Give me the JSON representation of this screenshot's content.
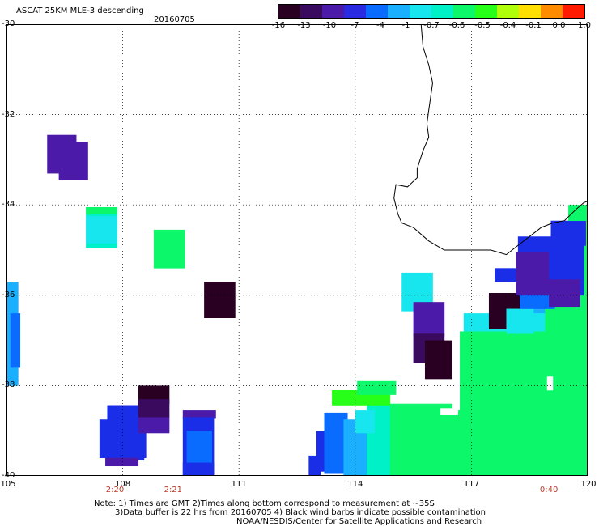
{
  "header": {
    "title": "ASCAT 25KM MLE-3 descending",
    "date": "20160705"
  },
  "colorbar": {
    "labels": [
      "-16",
      "-13",
      "-10",
      "-7",
      "-4",
      "-1",
      "-0.7",
      "-0.6",
      "-0.5",
      "-0.4",
      "-0.1",
      "0.0",
      "1.0"
    ],
    "colors": [
      "#2a0022",
      "#3a0a5e",
      "#4b1aa8",
      "#2a2ae0",
      "#0a6cff",
      "#1ab0ff",
      "#18e6ee",
      "#00f0c8",
      "#0cf86a",
      "#28ff18",
      "#b0ff0a",
      "#ffe000",
      "#ff8c00",
      "#ff1a00"
    ]
  },
  "axes": {
    "lat_labels": [
      "-30",
      "-32",
      "-34",
      "-36",
      "-38",
      "-40"
    ],
    "lon_labels": [
      "105",
      "108",
      "111",
      "114",
      "117",
      "120"
    ],
    "lat_range": [
      -40,
      -30
    ],
    "lon_range": [
      105,
      120
    ],
    "grid": "dotted"
  },
  "time_labels": [
    {
      "text": "2:20",
      "lon": 107.8
    },
    {
      "text": "2:21",
      "lon": 109.3
    },
    {
      "text": "0:40",
      "lon": 119.0
    }
  ],
  "notes": {
    "line1": "Note: 1) Times are GMT 2)Times along bottom correspond to measurement at ~35S",
    "line2": "3)Data buffer is 22 hrs from 20160705 4) Black wind barbs indicate possible contamination",
    "line3": "NOAA/NESDIS/Center for Satellite Applications and Research"
  },
  "palette": {
    "dark": "#2a0022",
    "darkpurple": "#3a0a5e",
    "purple": "#4b1aa8",
    "blue": "#1a2ee8",
    "midblue": "#0a6cff",
    "lightblue": "#1ab0ff",
    "cyan": "#18e6ee",
    "teal": "#00f0c8",
    "green": "#0cf86a",
    "lime": "#28ff18"
  }
}
